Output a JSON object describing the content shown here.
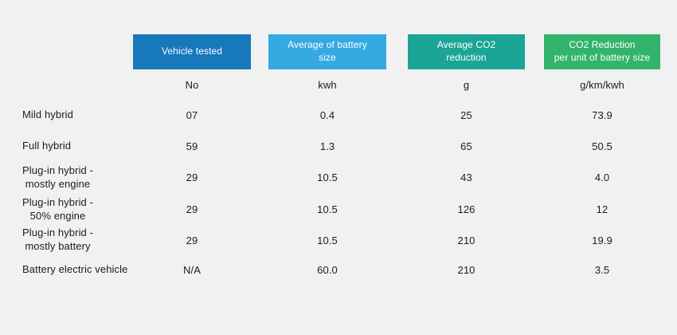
{
  "page": {
    "background_color": "#f1f1f2",
    "text_color": "#1c1c1c"
  },
  "table": {
    "columns": [
      {
        "label": "Vehicle tested",
        "unit": "No",
        "color": "#1878bc"
      },
      {
        "label": "Average of battery\nsize",
        "unit": "kwh",
        "color": "#35a9e1"
      },
      {
        "label": "Average CO2\nreduction",
        "unit": "g",
        "color": "#1aa596"
      },
      {
        "label": "CO2 Reduction\nper unit of battery size",
        "unit": "g/km/kwh",
        "color": "#33b46c"
      }
    ],
    "rows": [
      {
        "label": "Mild hybrid",
        "values": [
          "07",
          "0.4",
          "25",
          "73.9"
        ]
      },
      {
        "label": "Full hybrid",
        "values": [
          "59",
          "1.3",
          "65",
          "50.5"
        ]
      },
      {
        "label": "Plug-in hybrid -\nmostly engine",
        "values": [
          "29",
          "10.5",
          "43",
          "4.0"
        ]
      },
      {
        "label": "Plug-in hybrid -\n50% engine",
        "values": [
          "29",
          "10.5",
          "126",
          "12"
        ]
      },
      {
        "label": "Plug-in hybrid -\nmostly battery",
        "values": [
          "29",
          "10.5",
          "210",
          "19.9"
        ]
      },
      {
        "label": "Battery electric vehicle",
        "values": [
          "N/A",
          "60.0",
          "210",
          "3.5"
        ]
      }
    ]
  },
  "chart_data": {
    "type": "table",
    "columns": [
      "Vehicle tested",
      "Average of battery size",
      "Average CO2 reduction",
      "CO2 Reduction per unit of battery size"
    ],
    "units": [
      "No",
      "kwh",
      "g",
      "g/km/kwh"
    ],
    "rows": [
      {
        "vehicle_type": "Mild hybrid",
        "vehicles_tested": "07",
        "avg_battery_size_kwh": 0.4,
        "avg_co2_reduction_g": 25,
        "co2_reduction_per_unit_battery_size": 73.9
      },
      {
        "vehicle_type": "Full hybrid",
        "vehicles_tested": "59",
        "avg_battery_size_kwh": 1.3,
        "avg_co2_reduction_g": 65,
        "co2_reduction_per_unit_battery_size": 50.5
      },
      {
        "vehicle_type": "Plug-in hybrid - mostly engine",
        "vehicles_tested": "29",
        "avg_battery_size_kwh": 10.5,
        "avg_co2_reduction_g": 43,
        "co2_reduction_per_unit_battery_size": 4.0
      },
      {
        "vehicle_type": "Plug-in hybrid - 50% engine",
        "vehicles_tested": "29",
        "avg_battery_size_kwh": 10.5,
        "avg_co2_reduction_g": 126,
        "co2_reduction_per_unit_battery_size": 12
      },
      {
        "vehicle_type": "Plug-in hybrid - mostly battery",
        "vehicles_tested": "29",
        "avg_battery_size_kwh": 10.5,
        "avg_co2_reduction_g": 210,
        "co2_reduction_per_unit_battery_size": 19.9
      },
      {
        "vehicle_type": "Battery electric vehicle",
        "vehicles_tested": "N/A",
        "avg_battery_size_kwh": 60.0,
        "avg_co2_reduction_g": 210,
        "co2_reduction_per_unit_battery_size": 3.5
      }
    ]
  }
}
